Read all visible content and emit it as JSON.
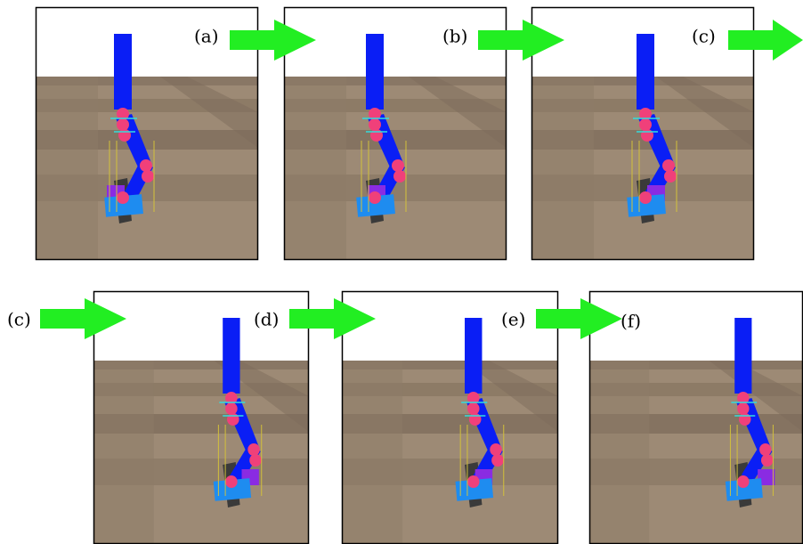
{
  "labels": [
    "(a)",
    "(b)",
    "(c)",
    "(c)",
    "(d)",
    "(e)",
    "(f)"
  ]
}
